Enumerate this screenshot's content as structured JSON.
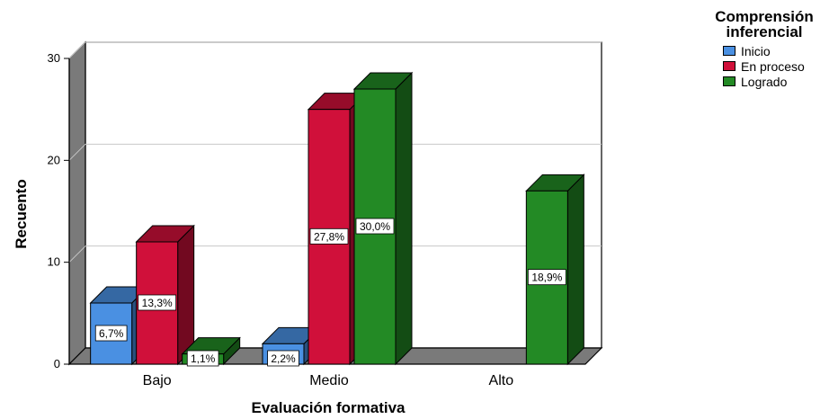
{
  "chart_data": {
    "type": "bar",
    "categories": [
      "Bajo",
      "Medio",
      "Alto"
    ],
    "series": [
      {
        "name": "Inicio",
        "values": [
          6,
          2,
          0
        ],
        "labels": [
          "6,7%",
          "2,2%",
          ""
        ],
        "color": "#4a90e2"
      },
      {
        "name": "En proceso",
        "values": [
          12,
          25,
          0
        ],
        "labels": [
          "13,3%",
          "27,8%",
          ""
        ],
        "color": "#d0103a"
      },
      {
        "name": "Logrado",
        "values": [
          1,
          27,
          17
        ],
        "labels": [
          "1,1%",
          "30,0%",
          "18,9%"
        ],
        "color": "#238a25"
      }
    ],
    "xlabel": "Evaluación formativa",
    "ylabel": "Recuento",
    "ylim": [
      0,
      30
    ],
    "yticks": [
      "0",
      "10",
      "20",
      "30"
    ],
    "legend_title": "Comprensión inferencial",
    "legend_position": "top-right",
    "grid": true,
    "style": "3d"
  }
}
